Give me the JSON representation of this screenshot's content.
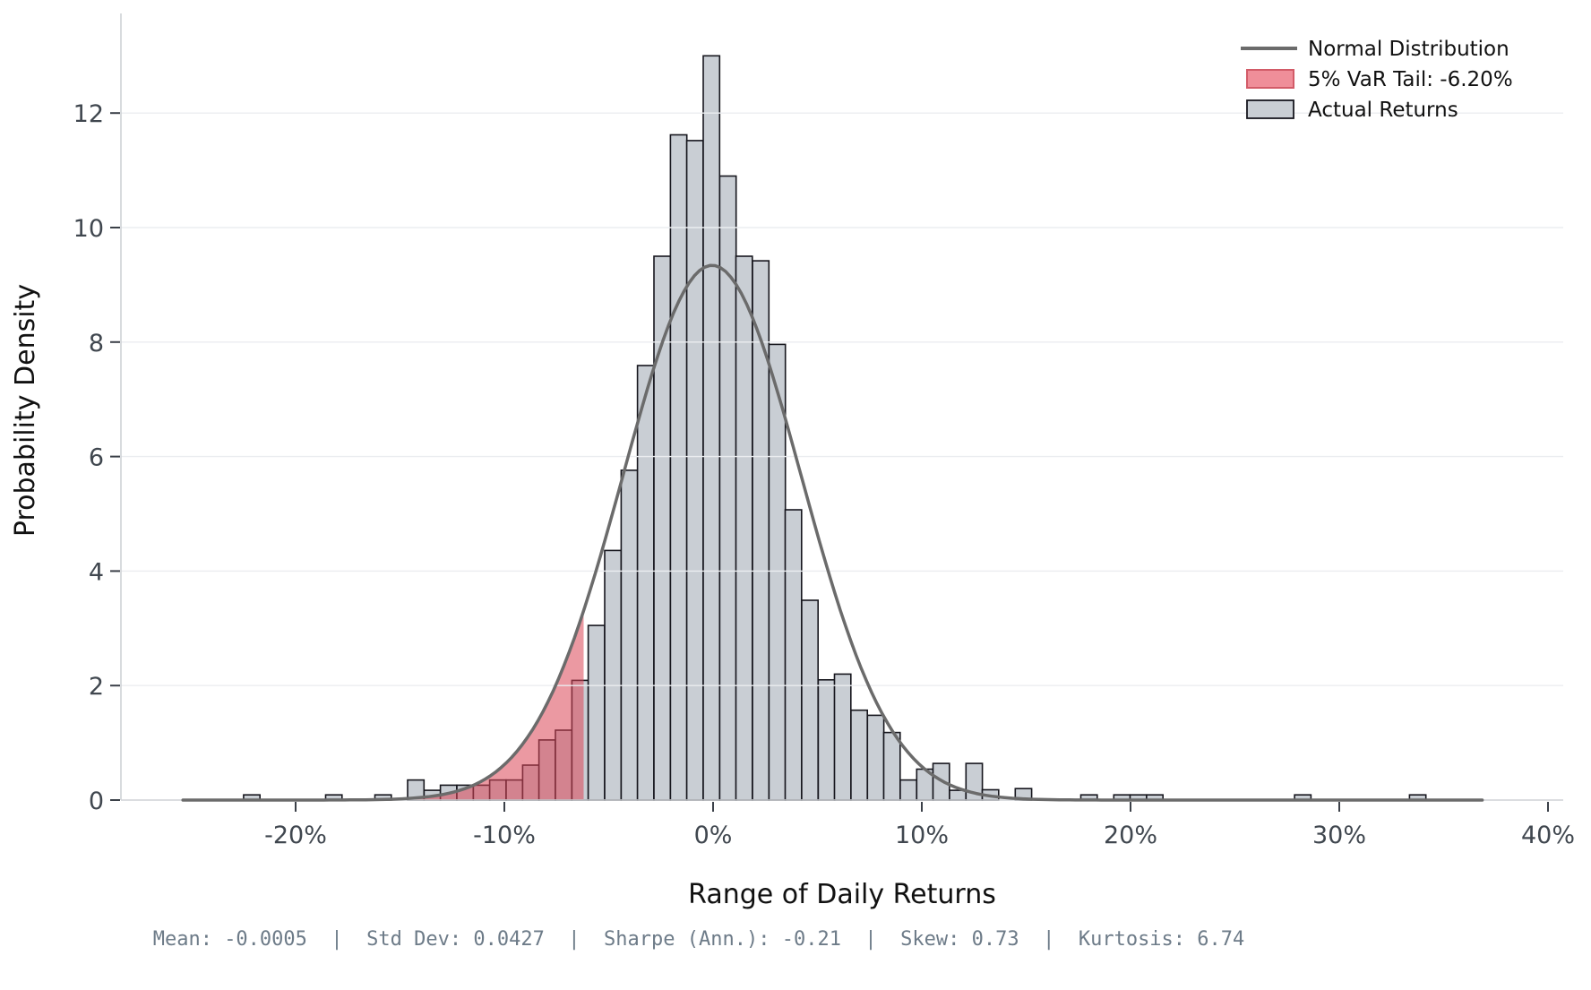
{
  "figure": {
    "title": "",
    "xlabel": "Range of Daily Returns",
    "ylabel": "Probability Density",
    "legend": {
      "normal": "Normal Distribution",
      "var": "5% VaR Tail: -6.20%",
      "actual": "Actual Returns"
    },
    "footer": "Mean: -0.0005  |  Std Dev: 0.0427  |  Sharpe (Ann.): -0.21  |  Skew: 0.73  |  Kurtosis: 6.74"
  },
  "chart_data": {
    "type": "bar",
    "subtype": "histogram-with-normal-overlay",
    "title": "",
    "xlabel": "Range of Daily Returns",
    "ylabel": "Probability Density",
    "x_unit": "percent_daily_return",
    "xlim_pct": [
      -28.4,
      42.0
    ],
    "ylim": [
      0,
      13.7
    ],
    "grid": "horizontal",
    "legend_position": "top-right",
    "bin_width_pct": 0.787,
    "bars": [
      [
        -22.1,
        0.09
      ],
      [
        -18.17,
        0.09
      ],
      [
        -15.81,
        0.09
      ],
      [
        -14.24,
        0.35
      ],
      [
        -13.45,
        0.17
      ],
      [
        -12.67,
        0.26
      ],
      [
        -11.88,
        0.26
      ],
      [
        -11.09,
        0.26
      ],
      [
        -10.31,
        0.35
      ],
      [
        -9.52,
        0.35
      ],
      [
        -8.73,
        0.61
      ],
      [
        -7.95,
        1.05
      ],
      [
        -7.16,
        1.22
      ],
      [
        -6.37,
        2.09
      ],
      [
        -5.59,
        3.05
      ],
      [
        -4.8,
        4.36
      ],
      [
        -4.01,
        5.76
      ],
      [
        -3.23,
        7.59
      ],
      [
        -2.44,
        9.5
      ],
      [
        -1.65,
        11.62
      ],
      [
        -0.87,
        11.52
      ],
      [
        -0.08,
        13.0
      ],
      [
        0.71,
        10.9
      ],
      [
        1.49,
        9.5
      ],
      [
        2.28,
        9.42
      ],
      [
        3.07,
        7.96
      ],
      [
        3.85,
        5.07
      ],
      [
        4.64,
        3.49
      ],
      [
        5.43,
        2.1
      ],
      [
        6.21,
        2.2
      ],
      [
        7.0,
        1.57
      ],
      [
        7.79,
        1.48
      ],
      [
        8.57,
        1.18
      ],
      [
        9.36,
        0.35
      ],
      [
        10.15,
        0.54
      ],
      [
        10.93,
        0.64
      ],
      [
        11.72,
        0.17
      ],
      [
        12.51,
        0.64
      ],
      [
        13.29,
        0.18
      ],
      [
        14.87,
        0.2
      ],
      [
        18.01,
        0.09
      ],
      [
        19.59,
        0.09
      ],
      [
        20.37,
        0.09
      ],
      [
        21.16,
        0.09
      ],
      [
        28.25,
        0.09
      ],
      [
        33.76,
        0.09
      ]
    ],
    "normal_curve": {
      "mean_pct": -0.05,
      "sd_pct": 4.27,
      "peak_density": 9.34,
      "x_range_pct": [
        -25.4,
        37.0
      ]
    },
    "var_threshold_pct": -6.2,
    "x_ticks": [
      {
        "v": -20,
        "label": "-20%"
      },
      {
        "v": -10,
        "label": "-10%"
      },
      {
        "v": 0,
        "label": "0%"
      },
      {
        "v": 10,
        "label": "10%"
      },
      {
        "v": 20,
        "label": "20%"
      },
      {
        "v": 30,
        "label": "30%"
      },
      {
        "v": 40,
        "label": "40%"
      }
    ],
    "y_ticks": [
      {
        "v": 0,
        "label": "0"
      },
      {
        "v": 2,
        "label": "2"
      },
      {
        "v": 4,
        "label": "4"
      },
      {
        "v": 6,
        "label": "6"
      },
      {
        "v": 8,
        "label": "8"
      },
      {
        "v": 10,
        "label": "10"
      },
      {
        "v": 12,
        "label": "12"
      }
    ],
    "stats": {
      "mean": -0.0005,
      "std_dev": 0.0427,
      "sharpe_annualized": -0.21,
      "skew": 0.73,
      "kurtosis": 6.74,
      "var_5pct": -0.062
    },
    "colors": {
      "bar_fill": "#c9ced4",
      "bar_edge": "#16161d",
      "var_fill": "rgba(219,70,85,0.55)",
      "var_legend_fill": "#ef8e99",
      "var_legend_edge": "#d25b68",
      "curve": "#6b6b6b",
      "grid": "#ebedf0",
      "spine": "#cfd2d6",
      "tick_label": "#40474f",
      "footer_text": "#6d7b88"
    }
  }
}
